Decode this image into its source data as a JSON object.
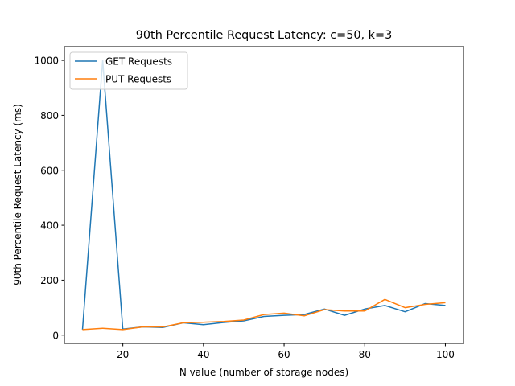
{
  "chart_data": {
    "type": "line",
    "title": "90th Percentile Request Latency: c=50, k=3",
    "xlabel": "N value (number of storage nodes)",
    "ylabel": "90th Percentile Request Latency (ms)",
    "xlim": [
      5.5,
      104.5
    ],
    "ylim": [
      -30,
      1050
    ],
    "xticks": [
      20,
      40,
      60,
      80,
      100
    ],
    "yticks": [
      0,
      200,
      400,
      600,
      800,
      1000
    ],
    "grid": false,
    "legend_position": "top-left",
    "x": [
      10,
      15,
      20,
      25,
      30,
      35,
      40,
      45,
      50,
      55,
      60,
      65,
      70,
      75,
      80,
      85,
      90,
      95,
      100
    ],
    "series": [
      {
        "name": "GET Requests",
        "color": "#1f77b4",
        "values": [
          20,
          1000,
          22,
          30,
          28,
          45,
          38,
          46,
          52,
          68,
          72,
          75,
          95,
          72,
          95,
          108,
          85,
          115,
          108
        ]
      },
      {
        "name": "PUT Requests",
        "color": "#ff7f0e",
        "values": [
          20,
          25,
          20,
          30,
          30,
          45,
          47,
          50,
          55,
          75,
          80,
          70,
          93,
          88,
          88,
          130,
          100,
          112,
          118
        ]
      }
    ]
  }
}
